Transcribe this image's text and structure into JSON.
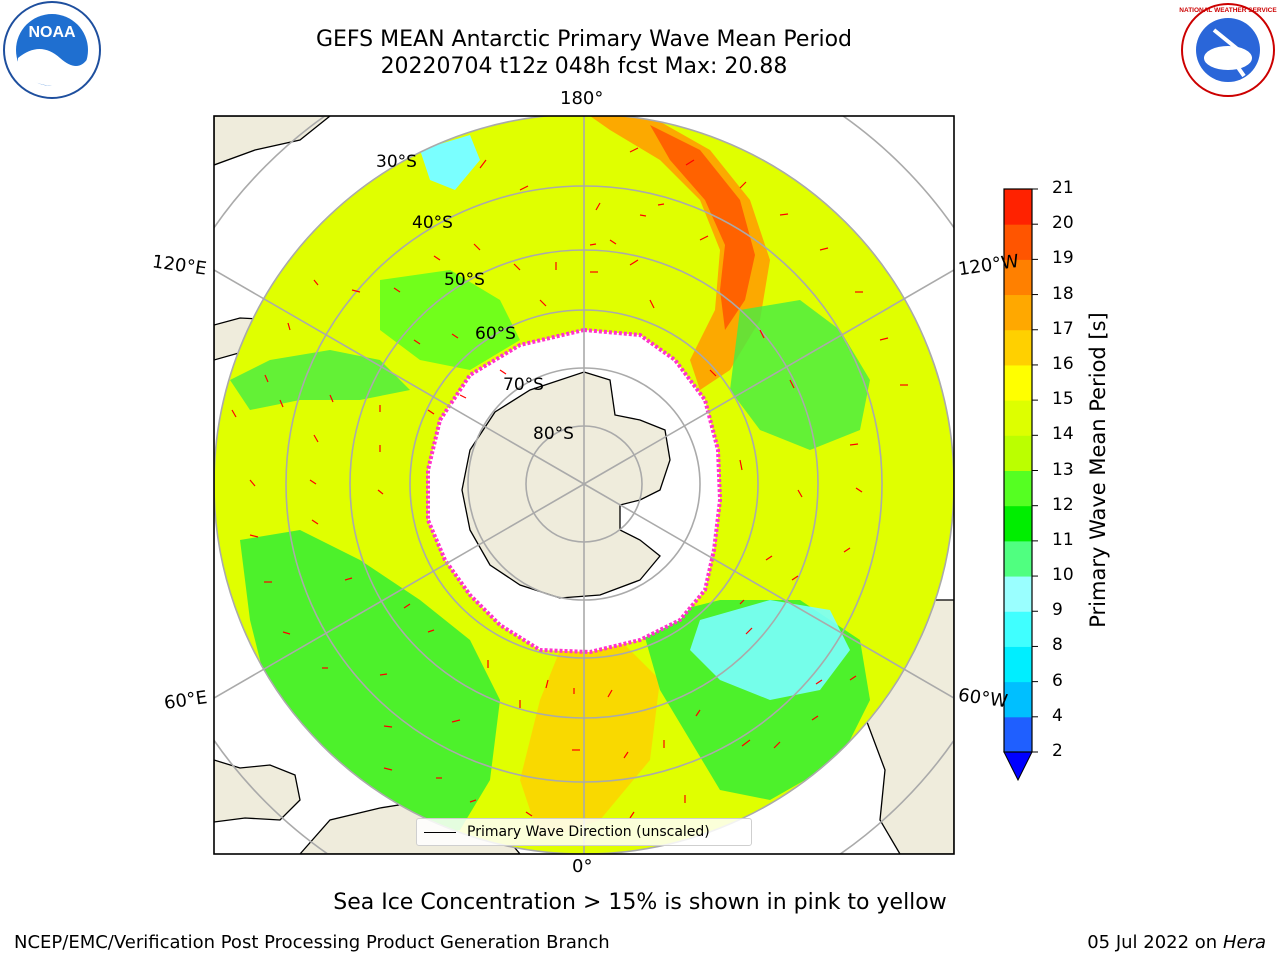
{
  "header": {
    "title_line1": "GEFS MEAN Antarctic Primary Wave Mean Period",
    "title_line2": "20220704 t12z 048h fcst   Max: 20.88"
  },
  "logos": {
    "left": "noaa-logo",
    "right": "nws-logo",
    "left_text": "NOAA",
    "right_text": "NATIONAL WEATHER SERVICE"
  },
  "map": {
    "projection": "south-polar-stereographic",
    "longitude_labels": [
      "180°",
      "120°E",
      "120°W",
      "60°E",
      "60°W",
      "0°"
    ],
    "latitude_labels": [
      "30°S",
      "40°S",
      "50°S",
      "60°S",
      "70°S",
      "80°S"
    ],
    "legend_label": "Primary Wave Direction (unscaled)",
    "vector_color": "#ff0000",
    "sea_ice_color": "#ff33cc",
    "land_color": "#efecdc",
    "ice_color": "#ffffff"
  },
  "colorbar": {
    "label": "Primary Wave Mean Period [s]",
    "ticks": [
      "2",
      "4",
      "6",
      "8",
      "9",
      "10",
      "11",
      "12",
      "13",
      "14",
      "15",
      "16",
      "17",
      "18",
      "19",
      "20",
      "21"
    ],
    "colors": [
      "#1f5fff",
      "#00bfff",
      "#00eeff",
      "#40ffff",
      "#9affff",
      "#50ff80",
      "#00ee00",
      "#55ff22",
      "#bbff00",
      "#ddff00",
      "#ffff00",
      "#ffd000",
      "#ffa800",
      "#ff8000",
      "#ff5500",
      "#ff2200"
    ],
    "extend_color": "#0000ff"
  },
  "footer": {
    "subtitle": "Sea Ice Concentration > 15% is shown in pink to yellow",
    "credit": "NCEP/EMC/Verification Post Processing Product Generation Branch",
    "date": "05 Jul 2022 on",
    "machine": "Hera"
  }
}
